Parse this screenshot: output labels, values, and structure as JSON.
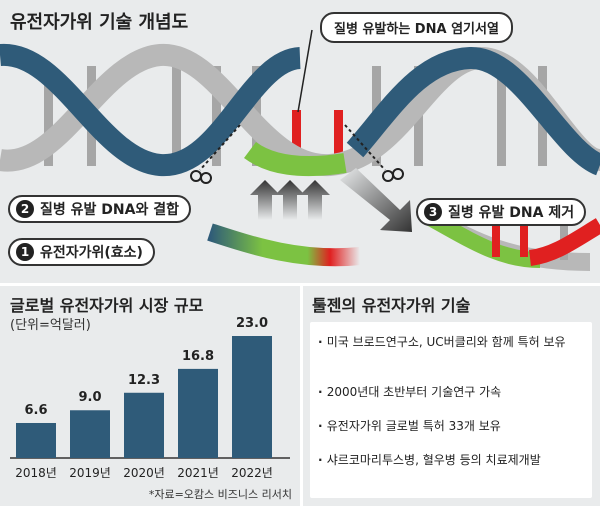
{
  "diagram": {
    "title": "유전자가위 기술 개념도",
    "top_callout": "질병 유발하는 DNA 염기서열",
    "step1": {
      "num": "1",
      "label": "유전자가위(효소)"
    },
    "step2": {
      "num": "2",
      "label": "질병 유발 DNA와 결합"
    },
    "step3": {
      "num": "3",
      "label": "질병 유발 DNA 제거"
    },
    "colors": {
      "strand_blue": "#2f5b79",
      "strand_gray": "#b8b8b8",
      "rung_gray": "#a6a6a6",
      "green": "#7cc242",
      "red": "#e02020"
    }
  },
  "market": {
    "title": "글로벌 유전자가위 시장 규모",
    "unit": "(단위=억달러)",
    "source": "*자료=오캄스 비즈니스 리서치",
    "chart_data": {
      "type": "bar",
      "categories": [
        "2018년",
        "2019년",
        "2020년",
        "2021년",
        "2022년"
      ],
      "values": [
        6.6,
        9.0,
        12.3,
        16.8,
        23.0
      ],
      "value_labels": [
        "6.6",
        "9.0",
        "12.3",
        "16.8",
        "23.0"
      ],
      "bar_color": "#2f5b79"
    }
  },
  "tech": {
    "title": "툴젠의 유전자가위 기술",
    "items": [
      "미국 브로드연구소, UC버클리와 함께 특허 보유",
      "2000년대 초반부터 기술연구 가속",
      "유전자가위  글로벌 특허 33개 보유",
      "샤르코마리투스병, 혈우병 등의 치료제개발"
    ]
  }
}
